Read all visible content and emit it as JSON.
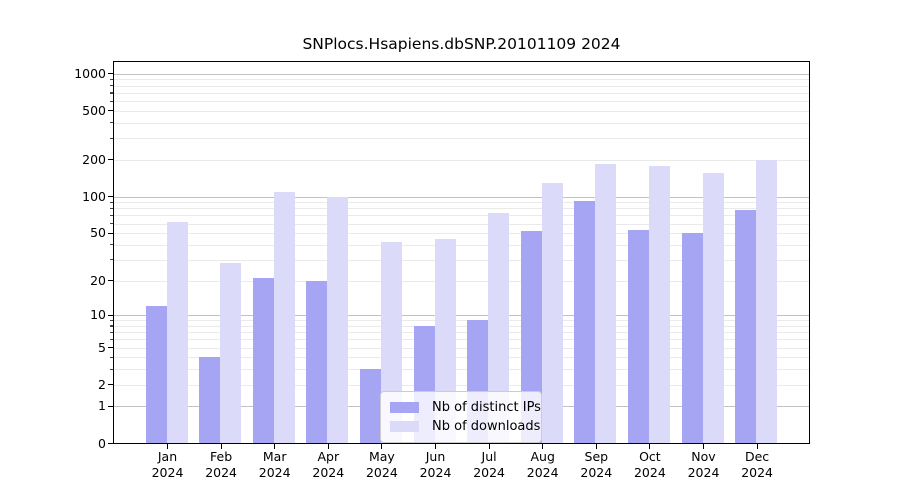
{
  "title": "SNPlocs.Hsapiens.dbSNP.20101109 2024",
  "colors": {
    "ips": "#a5a5f3",
    "downloads": "#dbdbf9",
    "grid_major": "#c2c2c2",
    "grid_minor": "#eaeaea",
    "axis": "#000000",
    "legend_border": "#cccccc",
    "legend_bg": "rgba(255,255,255,0.8)"
  },
  "legend": {
    "items": [
      {
        "label": "Nb of distinct IPs",
        "series": "ips"
      },
      {
        "label": "Nb of downloads",
        "series": "downloads"
      }
    ]
  },
  "chart_data": {
    "type": "bar",
    "title": "SNPlocs.Hsapiens.dbSNP.20101109 2024",
    "categories": [
      "Jan",
      "Feb",
      "Mar",
      "Apr",
      "May",
      "Jun",
      "Jul",
      "Aug",
      "Sep",
      "Oct",
      "Nov",
      "Dec"
    ],
    "year": "2024",
    "series": [
      {
        "name": "Nb of distinct IPs",
        "color_key": "ips",
        "values": [
          12,
          4,
          21,
          20,
          3,
          8,
          9,
          52,
          92,
          53,
          50,
          78
        ]
      },
      {
        "name": "Nb of downloads",
        "color_key": "downloads",
        "values": [
          62,
          28,
          110,
          100,
          42,
          45,
          73,
          128,
          186,
          177,
          156,
          200
        ]
      }
    ],
    "yscale": "log10(1+x)",
    "yticks": [
      0,
      1,
      2,
      5,
      10,
      20,
      50,
      100,
      200,
      500,
      1000
    ],
    "ylim": [
      0,
      1270
    ],
    "grid": "horizontal, major decades + minor",
    "legend_position": "lower center inside plot"
  }
}
